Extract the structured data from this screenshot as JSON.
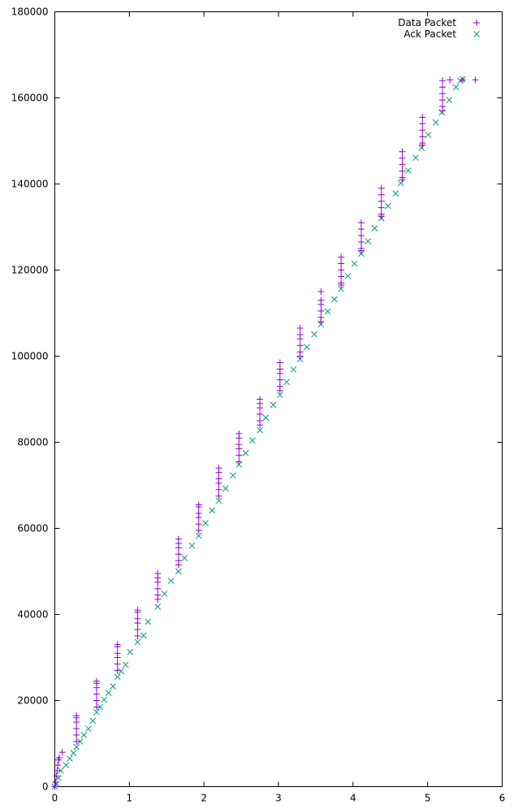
{
  "chart_data": {
    "type": "scatter",
    "title": "",
    "xlabel": "",
    "ylabel": "",
    "xlim": [
      0,
      6
    ],
    "ylim": [
      0,
      180000
    ],
    "x_ticks": [
      0,
      1,
      2,
      3,
      4,
      5,
      6
    ],
    "y_ticks": [
      0,
      20000,
      40000,
      60000,
      80000,
      100000,
      120000,
      140000,
      160000,
      180000
    ],
    "x_tick_labels": [
      "0",
      "1",
      "2",
      "3",
      "4",
      "5",
      "6"
    ],
    "y_tick_labels": [
      "0",
      "20000",
      "40000",
      "60000",
      "80000",
      "100000",
      "120000",
      "140000",
      "160000",
      "180000"
    ],
    "grid": false,
    "legend_position": "top-right",
    "series": [
      {
        "name": "Data Packet",
        "color": "#9400d3",
        "marker": "plus",
        "x": [
          0.0,
          0.01,
          0.02,
          0.03,
          0.04,
          0.05,
          0.06,
          0.1,
          0.29,
          0.29,
          0.29,
          0.29,
          0.29,
          0.29,
          0.56,
          0.56,
          0.56,
          0.56,
          0.56,
          0.56,
          0.84,
          0.84,
          0.84,
          0.84,
          0.84,
          0.84,
          1.11,
          1.11,
          1.11,
          1.11,
          1.11,
          1.11,
          1.38,
          1.38,
          1.38,
          1.38,
          1.38,
          1.38,
          1.66,
          1.66,
          1.66,
          1.66,
          1.66,
          1.66,
          1.93,
          1.93,
          1.93,
          1.93,
          1.93,
          1.93,
          2.2,
          2.2,
          2.2,
          2.2,
          2.2,
          2.2,
          2.47,
          2.47,
          2.47,
          2.47,
          2.47,
          2.47,
          2.75,
          2.75,
          2.75,
          2.75,
          2.75,
          2.75,
          3.02,
          3.02,
          3.02,
          3.02,
          3.02,
          3.02,
          3.29,
          3.29,
          3.29,
          3.29,
          3.29,
          3.29,
          3.57,
          3.57,
          3.57,
          3.57,
          3.57,
          3.57,
          3.84,
          3.84,
          3.84,
          3.84,
          3.84,
          3.84,
          4.11,
          4.11,
          4.11,
          4.11,
          4.11,
          4.11,
          4.38,
          4.38,
          4.38,
          4.38,
          4.38,
          4.38,
          4.66,
          4.66,
          4.66,
          4.66,
          4.66,
          4.66,
          4.93,
          4.93,
          4.93,
          4.93,
          4.93,
          4.93,
          5.2,
          5.2,
          5.2,
          5.2,
          5.2,
          5.2,
          5.3,
          5.47,
          5.64
        ],
        "y": [
          0,
          1000,
          2500,
          3700,
          5000,
          6200,
          6700,
          8000,
          10500,
          12000,
          13500,
          15000,
          16000,
          16500,
          18500,
          20000,
          21500,
          23000,
          24000,
          24500,
          27000,
          28500,
          30000,
          31000,
          32500,
          33000,
          35000,
          36500,
          38000,
          39000,
          40500,
          41000,
          43500,
          44500,
          46000,
          47500,
          48500,
          49500,
          51500,
          52500,
          54000,
          55500,
          56500,
          57500,
          59500,
          61000,
          62500,
          63500,
          65000,
          65500,
          67500,
          69000,
          70500,
          71500,
          73000,
          74000,
          75500,
          77000,
          78500,
          79500,
          81000,
          82000,
          84000,
          85000,
          86500,
          88000,
          89000,
          90000,
          92000,
          93000,
          94500,
          96000,
          97000,
          98500,
          100000,
          101000,
          102500,
          104000,
          105000,
          106500,
          108000,
          109000,
          110500,
          112000,
          113000,
          115000,
          116500,
          117000,
          118500,
          120000,
          121500,
          123000,
          124500,
          125000,
          126500,
          128000,
          129500,
          131000,
          132500,
          133000,
          134500,
          136000,
          137500,
          139000,
          141000,
          141500,
          143000,
          144500,
          146000,
          147500,
          149000,
          149500,
          151000,
          152500,
          154000,
          155500,
          157000,
          158000,
          159500,
          161000,
          162500,
          164000,
          164200,
          164200,
          164200
        ]
      },
      {
        "name": "Ack Packet",
        "color": "#009e73",
        "marker": "cross",
        "x": [
          0.0,
          0.02,
          0.05,
          0.08,
          0.15,
          0.2,
          0.25,
          0.29,
          0.34,
          0.39,
          0.45,
          0.51,
          0.56,
          0.61,
          0.66,
          0.72,
          0.78,
          0.84,
          0.89,
          0.95,
          1.01,
          1.11,
          1.19,
          1.25,
          1.38,
          1.47,
          1.56,
          1.66,
          1.74,
          1.84,
          1.93,
          2.02,
          2.11,
          2.2,
          2.29,
          2.39,
          2.47,
          2.56,
          2.65,
          2.75,
          2.83,
          2.93,
          3.02,
          3.11,
          3.2,
          3.29,
          3.38,
          3.48,
          3.57,
          3.66,
          3.75,
          3.84,
          3.93,
          4.02,
          4.11,
          4.2,
          4.29,
          4.38,
          4.47,
          4.57,
          4.64,
          4.74,
          4.84,
          4.92,
          5.01,
          5.11,
          5.19,
          5.29,
          5.38,
          5.44,
          5.47
        ],
        "y": [
          0,
          700,
          2000,
          3700,
          5000,
          6500,
          7800,
          9200,
          10500,
          12000,
          13500,
          15300,
          17300,
          18500,
          20200,
          21800,
          23300,
          25500,
          26800,
          28300,
          31300,
          33600,
          35100,
          38300,
          41800,
          44800,
          47800,
          50000,
          53100,
          56000,
          58300,
          61200,
          64200,
          66400,
          69300,
          72300,
          74800,
          77500,
          80400,
          82800,
          85700,
          88700,
          91000,
          94000,
          96900,
          99300,
          102100,
          105100,
          107400,
          110400,
          113200,
          115600,
          118600,
          121500,
          123800,
          126700,
          129700,
          132000,
          134900,
          137800,
          140200,
          143100,
          146100,
          148400,
          151400,
          154300,
          156600,
          159500,
          162500,
          164000,
          164300
        ]
      }
    ]
  }
}
